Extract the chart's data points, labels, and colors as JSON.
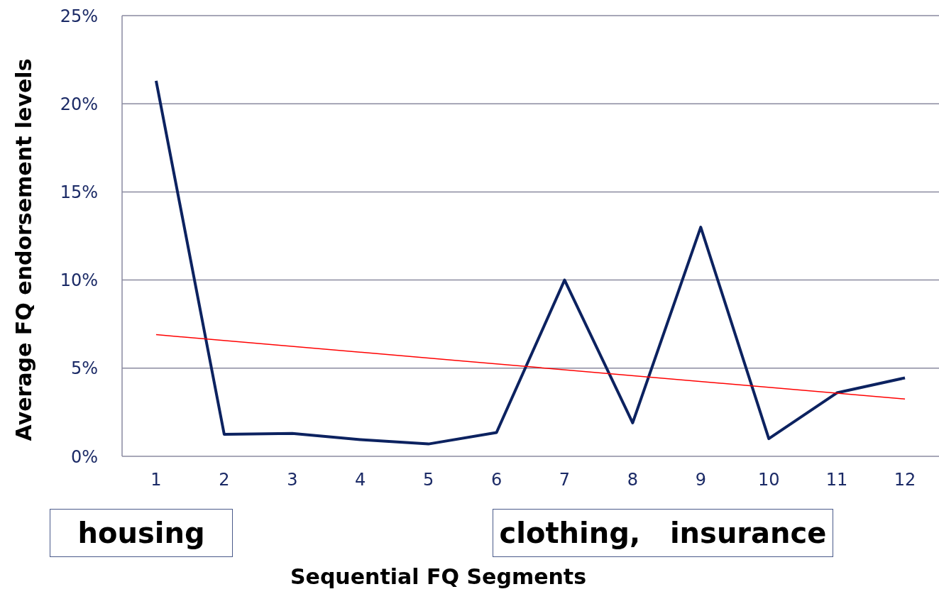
{
  "chart_data": {
    "type": "line",
    "xlabel": "Sequential FQ Segments",
    "ylabel": "Average FQ endorsement levels",
    "x": [
      1,
      2,
      3,
      4,
      5,
      6,
      7,
      8,
      9,
      10,
      11,
      12
    ],
    "xlim": [
      0.5,
      12.5
    ],
    "xticks": [
      1,
      2,
      3,
      4,
      5,
      6,
      7,
      8,
      9,
      10,
      11,
      12
    ],
    "ylim": [
      0,
      25
    ],
    "yticks": [
      {
        "value": 0,
        "label": "0%"
      },
      {
        "value": 5,
        "label": "5%"
      },
      {
        "value": 10,
        "label": "10%"
      },
      {
        "value": 15,
        "label": "15%"
      },
      {
        "value": 20,
        "label": "20%"
      },
      {
        "value": 25,
        "label": "25%"
      }
    ],
    "series": [
      {
        "color": "#0c2260",
        "values": [
          21.3,
          1.25,
          1.3,
          0.95,
          0.7,
          1.35,
          10.0,
          1.9,
          13.0,
          1.0,
          3.6,
          4.45
        ]
      },
      {
        "type": "line",
        "color": "#ff0000",
        "x": [
          1,
          12
        ],
        "values": [
          6.9,
          3.25
        ]
      }
    ],
    "grid": "y",
    "marker": "none",
    "line_style": "solid",
    "annotations": [
      "housing",
      "clothing,   insurance"
    ]
  }
}
